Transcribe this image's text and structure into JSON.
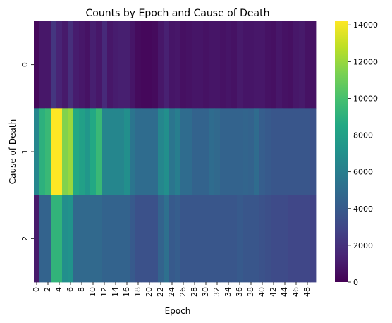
{
  "chart_data": {
    "type": "heatmap",
    "title": "Counts by Epoch and Cause of Death",
    "xlabel": "Epoch",
    "ylabel": "Cause of Death",
    "x_categories": [
      0,
      1,
      2,
      3,
      4,
      5,
      6,
      7,
      8,
      9,
      10,
      11,
      12,
      13,
      14,
      15,
      16,
      17,
      18,
      19,
      20,
      21,
      22,
      23,
      24,
      25,
      26,
      27,
      28,
      29,
      30,
      31,
      32,
      33,
      34,
      35,
      36,
      37,
      38,
      39,
      40,
      41,
      42,
      43,
      44,
      45,
      46,
      47,
      48,
      49
    ],
    "x_tick_labels": [
      "0",
      "2",
      "4",
      "6",
      "8",
      "10",
      "12",
      "14",
      "16",
      "18",
      "20",
      "22",
      "24",
      "26",
      "28",
      "30",
      "32",
      "34",
      "36",
      "38",
      "40",
      "42",
      "44",
      "46",
      "48"
    ],
    "y_categories": [
      "0",
      "1",
      "2"
    ],
    "rows": [
      {
        "name": "0",
        "values": [
          300,
          900,
          900,
          2200,
          1400,
          1000,
          1900,
          1100,
          900,
          700,
          1200,
          900,
          1700,
          900,
          1100,
          1200,
          1200,
          800,
          400,
          300,
          300,
          400,
          900,
          1300,
          800,
          900,
          600,
          700,
          800,
          800,
          700,
          800,
          800,
          700,
          800,
          700,
          1000,
          800,
          800,
          900,
          900,
          700,
          600,
          900,
          700,
          600,
          900,
          1000,
          700,
          700
        ]
      },
      {
        "name": "1",
        "values": [
          6500,
          9000,
          9500,
          14200,
          14200,
          11500,
          12000,
          8500,
          8000,
          7500,
          8500,
          9500,
          6500,
          6500,
          6500,
          6500,
          7000,
          5500,
          5000,
          5000,
          5000,
          5000,
          6500,
          7000,
          5500,
          6000,
          5000,
          5000,
          4500,
          4500,
          4500,
          5000,
          4800,
          4500,
          4500,
          4500,
          4500,
          4600,
          4500,
          5000,
          4200,
          4000,
          3800,
          3800,
          3800,
          3800,
          3800,
          3800,
          3800,
          3600
        ]
      },
      {
        "name": "2",
        "values": [
          1000,
          4500,
          4500,
          9200,
          9200,
          7000,
          7200,
          4800,
          4800,
          4800,
          4800,
          4800,
          4500,
          4500,
          4500,
          4500,
          4500,
          4000,
          3500,
          3500,
          3500,
          3500,
          4500,
          5200,
          4000,
          4200,
          3800,
          3800,
          3800,
          3800,
          3800,
          3800,
          3800,
          3800,
          3800,
          3800,
          4000,
          3800,
          3800,
          3800,
          3600,
          3400,
          3200,
          3200,
          3200,
          3000,
          3000,
          3000,
          3000,
          2800
        ]
      }
    ],
    "colorbar": {
      "colormap": "viridis",
      "min": 0,
      "max": 14200,
      "tick_labels": [
        "0",
        "2000",
        "4000",
        "6000",
        "8000",
        "10000",
        "12000",
        "14000"
      ],
      "tick_values": [
        0,
        2000,
        4000,
        6000,
        8000,
        10000,
        12000,
        14000
      ]
    },
    "grid": false
  }
}
